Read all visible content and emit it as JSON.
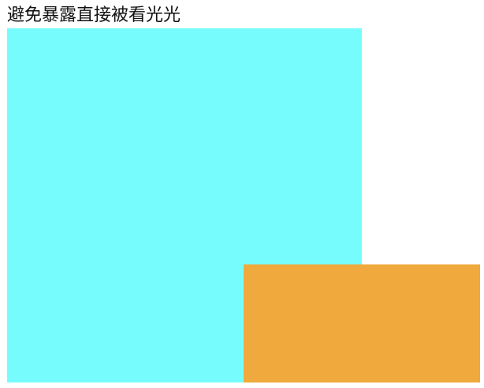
{
  "heading": "避免暴露直接被看光光",
  "boxes": {
    "cyan_color": "#77FCFD",
    "orange_color": "#EFA93C"
  }
}
